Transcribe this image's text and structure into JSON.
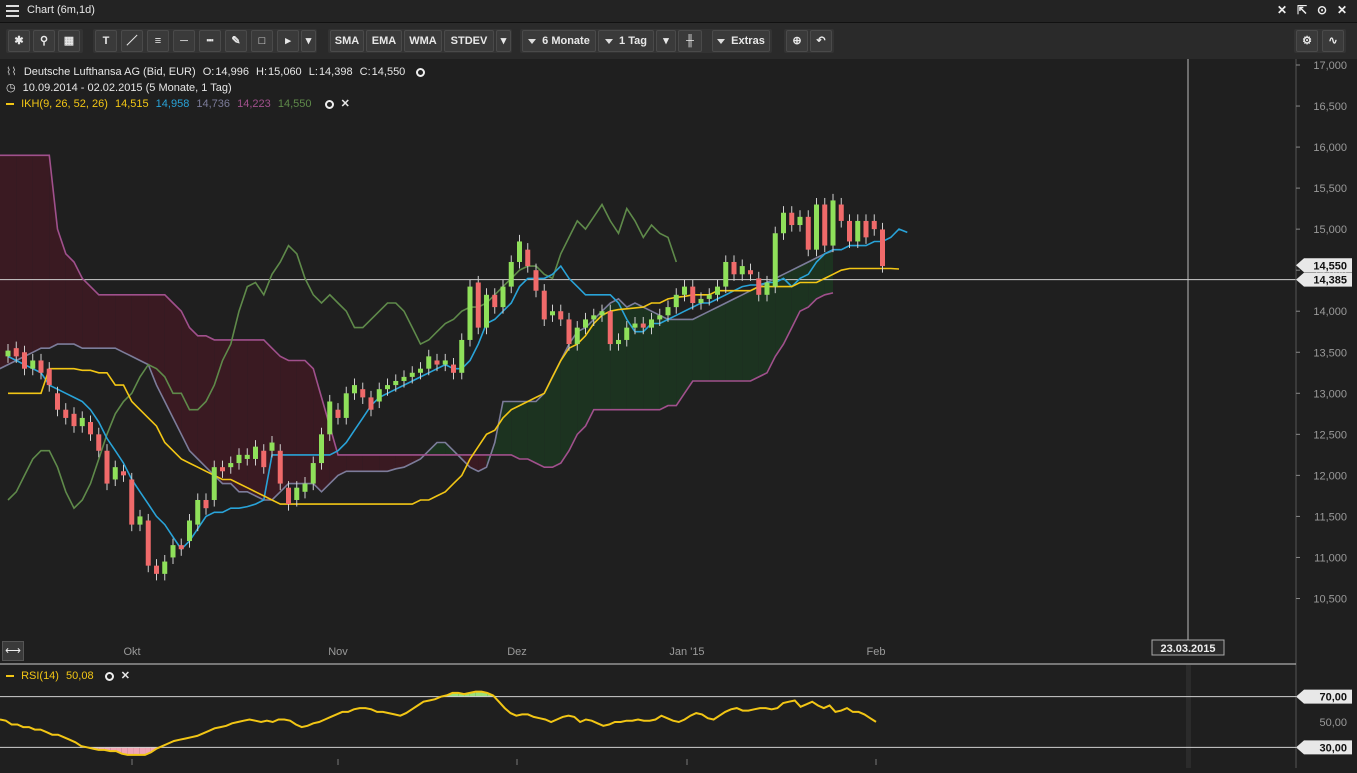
{
  "window": {
    "title": "Chart (6m,1d)"
  },
  "toolbar": {
    "indicators": [
      "SMA",
      "EMA",
      "WMA",
      "STDEV"
    ],
    "period": "6 Monate",
    "interval": "1 Tag",
    "extras": "Extras"
  },
  "header": {
    "instrument": "Deutsche Lufthansa AG (Bid, EUR)",
    "ohlc": {
      "o_label": "O:",
      "o": "14,996",
      "h_label": "H:",
      "h": "15,060",
      "l_label": "L:",
      "l": "14,398",
      "c_label": "C:",
      "c": "14,550"
    },
    "range": "10.09.2014 - 02.02.2015 (5 Monate, 1 Tag)",
    "ikh": {
      "label": "IKH(9, 26, 52, 26)",
      "v1": "14,515",
      "v2": "14,958",
      "v3": "14,736",
      "v4": "14,223",
      "v5": "14,550"
    },
    "rsi": {
      "label": "RSI(14)",
      "value": "50,08"
    }
  },
  "colors": {
    "background": "#1f1f1f",
    "candle_up": "#8fe05a",
    "candle_down": "#f06a6a",
    "tenkan": "#29a3d8",
    "kijun": "#f2c615",
    "senkou_a": "#7c7c9a",
    "senkou_b": "#a0508c",
    "chikou": "#5f8a4a",
    "cloud_bull": "#1c3320",
    "cloud_bear": "#3a1a22",
    "rsi": "#f2c615"
  },
  "chart_data": {
    "type": "candlestick",
    "title": "Deutsche Lufthansa AG (Bid, EUR)",
    "ylim": [
      10.25,
      17.0
    ],
    "y_ticks": [
      "17,000",
      "16,500",
      "16,000",
      "15,500",
      "15,000",
      "14,500",
      "14,000",
      "13,500",
      "13,000",
      "12,500",
      "12,000",
      "11,500",
      "11,000",
      "10,500"
    ],
    "x_labels": [
      "Okt",
      "Nov",
      "Dez",
      "Jan '15",
      "Feb"
    ],
    "crosshair": {
      "price": "14,385",
      "date": "23.03.2015"
    },
    "last_price": "14,550",
    "candles": [
      {
        "o": 13.45,
        "c": 13.52
      },
      {
        "o": 13.55,
        "c": 13.45
      },
      {
        "o": 13.5,
        "c": 13.3
      },
      {
        "o": 13.3,
        "c": 13.4
      },
      {
        "o": 13.4,
        "c": 13.25
      },
      {
        "o": 13.3,
        "c": 13.1
      },
      {
        "o": 13.0,
        "c": 12.8
      },
      {
        "o": 12.8,
        "c": 12.7
      },
      {
        "o": 12.75,
        "c": 12.6
      },
      {
        "o": 12.6,
        "c": 12.7
      },
      {
        "o": 12.65,
        "c": 12.5
      },
      {
        "o": 12.5,
        "c": 12.3
      },
      {
        "o": 12.3,
        "c": 11.9
      },
      {
        "o": 11.95,
        "c": 12.1
      },
      {
        "o": 12.05,
        "c": 12.0
      },
      {
        "o": 11.95,
        "c": 11.4
      },
      {
        "o": 11.4,
        "c": 11.5
      },
      {
        "o": 11.45,
        "c": 10.9
      },
      {
        "o": 10.9,
        "c": 10.8
      },
      {
        "o": 10.8,
        "c": 10.95
      },
      {
        "o": 11.0,
        "c": 11.15
      },
      {
        "o": 11.15,
        "c": 11.1
      },
      {
        "o": 11.2,
        "c": 11.45
      },
      {
        "o": 11.4,
        "c": 11.7
      },
      {
        "o": 11.7,
        "c": 11.6
      },
      {
        "o": 11.7,
        "c": 12.1
      },
      {
        "o": 12.1,
        "c": 12.05
      },
      {
        "o": 12.1,
        "c": 12.15
      },
      {
        "o": 12.15,
        "c": 12.25
      },
      {
        "o": 12.2,
        "c": 12.25
      },
      {
        "o": 12.2,
        "c": 12.35
      },
      {
        "o": 12.3,
        "c": 12.1
      },
      {
        "o": 12.3,
        "c": 12.4
      },
      {
        "o": 12.3,
        "c": 11.9
      },
      {
        "o": 11.85,
        "c": 11.65
      },
      {
        "o": 11.7,
        "c": 11.85
      },
      {
        "o": 11.8,
        "c": 11.9
      },
      {
        "o": 11.9,
        "c": 12.15
      },
      {
        "o": 12.15,
        "c": 12.5
      },
      {
        "o": 12.5,
        "c": 12.9
      },
      {
        "o": 12.8,
        "c": 12.7
      },
      {
        "o": 12.7,
        "c": 13.0
      },
      {
        "o": 13.0,
        "c": 13.1
      },
      {
        "o": 13.05,
        "c": 12.95
      },
      {
        "o": 12.95,
        "c": 12.8
      },
      {
        "o": 12.9,
        "c": 13.05
      },
      {
        "o": 13.05,
        "c": 13.1
      },
      {
        "o": 13.1,
        "c": 13.15
      },
      {
        "o": 13.15,
        "c": 13.2
      },
      {
        "o": 13.2,
        "c": 13.25
      },
      {
        "o": 13.25,
        "c": 13.3
      },
      {
        "o": 13.3,
        "c": 13.45
      },
      {
        "o": 13.4,
        "c": 13.35
      },
      {
        "o": 13.35,
        "c": 13.4
      },
      {
        "o": 13.35,
        "c": 13.25
      },
      {
        "o": 13.25,
        "c": 13.65
      },
      {
        "o": 13.65,
        "c": 14.3
      },
      {
        "o": 14.35,
        "c": 13.8
      },
      {
        "o": 13.8,
        "c": 14.2
      },
      {
        "o": 14.2,
        "c": 14.05
      },
      {
        "o": 14.05,
        "c": 14.3
      },
      {
        "o": 14.3,
        "c": 14.6
      },
      {
        "o": 14.6,
        "c": 14.85
      },
      {
        "o": 14.75,
        "c": 14.55
      },
      {
        "o": 14.5,
        "c": 14.25
      },
      {
        "o": 14.25,
        "c": 13.9
      },
      {
        "o": 13.95,
        "c": 14.0
      },
      {
        "o": 14.0,
        "c": 13.9
      },
      {
        "o": 13.9,
        "c": 13.6
      },
      {
        "o": 13.6,
        "c": 13.8
      },
      {
        "o": 13.8,
        "c": 13.9
      },
      {
        "o": 13.9,
        "c": 13.95
      },
      {
        "o": 13.95,
        "c": 14.0
      },
      {
        "o": 14.0,
        "c": 13.6
      },
      {
        "o": 13.6,
        "c": 13.65
      },
      {
        "o": 13.65,
        "c": 13.8
      },
      {
        "o": 13.8,
        "c": 13.85
      },
      {
        "o": 13.85,
        "c": 13.8
      },
      {
        "o": 13.8,
        "c": 13.9
      },
      {
        "o": 13.9,
        "c": 13.95
      },
      {
        "o": 13.95,
        "c": 14.05
      },
      {
        "o": 14.05,
        "c": 14.2
      },
      {
        "o": 14.2,
        "c": 14.3
      },
      {
        "o": 14.3,
        "c": 14.1
      },
      {
        "o": 14.1,
        "c": 14.15
      },
      {
        "o": 14.15,
        "c": 14.2
      },
      {
        "o": 14.2,
        "c": 14.3
      },
      {
        "o": 14.3,
        "c": 14.6
      },
      {
        "o": 14.6,
        "c": 14.45
      },
      {
        "o": 14.45,
        "c": 14.55
      },
      {
        "o": 14.5,
        "c": 14.45
      },
      {
        "o": 14.4,
        "c": 14.2
      },
      {
        "o": 14.2,
        "c": 14.35
      },
      {
        "o": 14.3,
        "c": 14.95
      },
      {
        "o": 14.95,
        "c": 15.2
      },
      {
        "o": 15.2,
        "c": 15.05
      },
      {
        "o": 15.05,
        "c": 15.15
      },
      {
        "o": 15.15,
        "c": 14.75
      },
      {
        "o": 14.75,
        "c": 15.3
      },
      {
        "o": 15.3,
        "c": 14.8
      },
      {
        "o": 14.8,
        "c": 15.35
      },
      {
        "o": 15.3,
        "c": 15.1
      },
      {
        "o": 15.1,
        "c": 14.85
      },
      {
        "o": 14.85,
        "c": 15.1
      },
      {
        "o": 15.1,
        "c": 14.9
      },
      {
        "o": 15.1,
        "c": 15.0
      },
      {
        "o": 14.996,
        "c": 14.55
      }
    ],
    "tenkan": [
      13.45,
      13.4,
      13.35,
      13.3,
      13.25,
      13.1,
      13.05,
      13.0,
      12.95,
      12.9,
      12.8,
      12.65,
      12.45,
      12.3,
      12.15,
      11.95,
      11.8,
      11.65,
      11.5,
      11.4,
      11.25,
      11.1,
      11.2,
      11.35,
      11.5,
      11.55,
      11.55,
      11.6,
      11.6,
      11.62,
      11.65,
      11.7,
      12.25,
      12.25,
      12.25,
      12.25,
      12.25,
      12.25,
      12.25,
      12.25,
      12.3,
      12.4,
      12.55,
      12.7,
      12.85,
      12.95,
      13.0,
      13.05,
      13.1,
      13.15,
      13.2,
      13.25,
      13.3,
      13.35,
      13.3,
      13.3,
      13.4,
      13.6,
      13.85,
      13.9,
      14.0,
      14.1,
      14.3,
      14.4,
      14.4,
      14.4,
      14.45,
      14.55,
      14.4,
      14.3,
      14.2,
      14.2,
      14.2,
      14.2,
      14.1,
      13.9,
      13.75,
      13.75,
      13.85,
      13.85,
      13.9,
      13.95,
      14.0,
      14.05,
      14.1,
      14.1,
      14.15,
      14.2,
      14.25,
      14.3,
      14.32,
      14.32,
      14.35,
      14.35,
      14.4,
      14.3,
      14.4,
      14.45,
      14.6,
      14.7,
      14.75,
      14.75,
      14.8,
      14.8,
      14.8,
      14.85,
      14.85,
      14.9,
      15.0,
      14.96
    ],
    "kijun": [
      13.0,
      13.0,
      13.0,
      13.0,
      13.0,
      13.3,
      13.3,
      13.3,
      13.3,
      13.28,
      13.28,
      13.25,
      13.25,
      13.1,
      13.1,
      12.9,
      12.8,
      12.7,
      12.6,
      12.4,
      12.3,
      12.2,
      12.15,
      12.1,
      12.05,
      12.0,
      11.95,
      11.95,
      11.9,
      11.85,
      11.8,
      11.75,
      11.7,
      11.65,
      11.65,
      11.65,
      11.65,
      11.65,
      11.65,
      11.65,
      11.65,
      11.65,
      11.65,
      11.65,
      11.65,
      11.65,
      11.65,
      11.65,
      11.65,
      11.65,
      11.7,
      11.7,
      11.75,
      11.8,
      11.9,
      12.0,
      12.2,
      12.35,
      12.5,
      12.55,
      12.7,
      12.8,
      12.85,
      12.9,
      12.95,
      13.0,
      13.2,
      13.4,
      13.55,
      13.6,
      13.7,
      13.85,
      13.95,
      14.0,
      14.02,
      14.03,
      14.04,
      14.05,
      14.1,
      14.1,
      14.15,
      14.17,
      14.18,
      14.2,
      14.2,
      14.2,
      14.25,
      14.25,
      14.25,
      14.25,
      14.25,
      14.3,
      14.3,
      14.3,
      14.3,
      14.3,
      14.35,
      14.35,
      14.35,
      14.4,
      14.45,
      14.5,
      14.52,
      14.52,
      14.52,
      14.52,
      14.52,
      14.52,
      14.515
    ],
    "senkou_a": [
      13.6,
      13.55,
      13.5,
      13.45,
      13.4,
      13.35,
      13.3,
      13.3,
      13.35,
      13.4,
      13.45,
      13.5,
      13.55,
      13.55,
      13.6,
      13.6,
      13.6,
      13.55,
      13.55,
      13.55,
      13.55,
      13.55,
      13.5,
      13.45,
      13.4,
      13.35,
      13.1,
      12.9,
      12.7,
      12.5,
      12.3,
      12.2,
      12.1,
      12.0,
      11.9,
      11.9,
      11.8,
      11.8,
      11.75,
      11.7,
      11.7,
      11.8,
      11.9,
      11.9,
      11.9,
      11.9,
      11.8,
      11.9,
      12.0,
      12.05,
      12.05,
      12.05,
      12.05,
      12.05,
      12.05,
      12.08,
      12.1,
      12.15,
      12.2,
      12.3,
      12.4,
      12.4,
      12.3,
      12.2,
      12.1,
      12.05,
      12.1,
      12.4,
      12.9,
      12.9,
      12.9,
      12.9,
      12.9,
      13.0,
      13.2,
      13.4,
      13.6,
      13.75,
      13.8,
      13.9,
      14.0,
      14.1,
      14.15,
      14.05,
      14.1,
      14.05,
      14.0,
      13.95,
      13.9,
      13.9,
      13.9,
      13.9,
      13.95,
      14.0,
      14.05,
      14.1,
      14.15,
      14.2,
      14.25,
      14.3,
      14.35,
      14.4,
      14.45,
      14.5,
      14.55,
      14.6,
      14.65,
      14.7,
      14.736
    ],
    "senkou_b": [
      15.95,
      15.9,
      15.9,
      15.9,
      15.9,
      15.9,
      15.9,
      15.9,
      15.9,
      15.9,
      15.9,
      15.9,
      15.9,
      15.9,
      15.0,
      14.7,
      14.6,
      14.4,
      14.3,
      14.2,
      14.2,
      14.2,
      14.2,
      14.2,
      14.2,
      14.2,
      14.2,
      14.2,
      14.1,
      14.0,
      13.8,
      13.7,
      13.7,
      13.65,
      13.65,
      13.65,
      13.65,
      13.65,
      13.65,
      13.65,
      13.55,
      13.45,
      13.4,
      13.4,
      13.4,
      13.3,
      12.95,
      12.6,
      12.25,
      12.25,
      12.25,
      12.25,
      12.25,
      12.25,
      12.25,
      12.25,
      12.25,
      12.25,
      12.25,
      12.25,
      12.25,
      12.25,
      12.25,
      12.25,
      12.25,
      12.25,
      12.25,
      12.25,
      12.25,
      12.25,
      12.2,
      12.2,
      12.15,
      12.1,
      12.1,
      12.15,
      12.3,
      12.5,
      12.6,
      12.8,
      12.8,
      12.8,
      12.8,
      12.8,
      12.8,
      12.8,
      12.8,
      12.8,
      12.85,
      12.85,
      13.0,
      13.15,
      13.15,
      13.15,
      13.15,
      13.15,
      13.15,
      13.15,
      13.15,
      13.2,
      13.25,
      13.45,
      13.6,
      13.8,
      14.0,
      14.05,
      14.15,
      14.2,
      14.223
    ],
    "chikou": [
      11.7,
      11.8,
      12.0,
      12.2,
      12.3,
      12.3,
      12.1,
      11.8,
      11.6,
      11.7,
      11.9,
      12.2,
      12.5,
      12.75,
      12.9,
      13.0,
      13.2,
      13.35,
      13.3,
      13.2,
      13.0,
      13.0,
      12.8,
      12.8,
      12.9,
      13.1,
      13.4,
      13.6,
      14.0,
      14.3,
      14.35,
      14.2,
      14.45,
      14.6,
      14.8,
      14.7,
      14.4,
      14.2,
      14.1,
      14.2,
      14.1,
      14.0,
      13.8,
      13.8,
      13.9,
      14.0,
      14.1,
      14.1,
      14.0,
      13.8,
      13.6,
      13.65,
      13.75,
      13.85,
      13.9,
      14.0,
      14.05,
      14.05,
      14.1,
      14.2,
      14.3,
      14.4,
      14.5,
      14.55,
      14.55,
      14.45,
      14.4,
      14.7,
      14.9,
      15.1,
      15.0,
      15.15,
      15.3,
      15.1,
      14.95,
      15.25,
      15.1,
      14.9,
      15.05,
      14.95,
      14.9,
      14.6
    ],
    "rsi": {
      "ylim": [
        20,
        80
      ],
      "levels": [
        "70,00",
        "50,00",
        "30,00"
      ],
      "values": [
        52,
        51,
        48,
        48,
        46,
        46,
        44,
        44,
        42,
        40,
        40,
        38,
        36,
        34,
        31,
        30,
        29,
        28,
        28,
        27,
        27,
        25,
        24,
        24,
        24,
        24,
        26,
        29,
        31,
        33,
        35,
        36,
        37,
        38,
        39,
        41,
        43,
        45,
        46,
        47,
        49,
        50,
        51,
        52,
        51,
        50,
        51,
        50,
        52,
        52,
        51,
        48,
        46,
        47,
        49,
        50,
        52,
        54,
        56,
        58,
        58,
        60,
        61,
        61,
        60,
        58,
        58,
        57,
        56,
        55,
        57,
        60,
        63,
        66,
        67,
        68,
        70,
        71,
        73,
        73,
        72,
        73,
        74,
        74,
        73,
        71,
        66,
        61,
        57,
        55,
        56,
        56,
        54,
        53,
        52,
        50,
        52,
        54,
        55,
        54,
        50,
        52,
        51,
        49,
        47,
        48,
        50,
        50,
        51,
        51,
        52,
        51,
        51,
        52,
        55,
        53,
        51,
        50,
        52,
        55,
        57,
        56,
        53,
        52,
        55,
        58,
        60,
        61,
        59,
        59,
        60,
        61,
        61,
        60,
        61,
        65,
        66,
        67,
        62,
        64,
        66,
        63,
        61,
        63,
        58,
        59,
        61,
        58,
        58,
        56,
        53,
        50.08
      ]
    }
  }
}
